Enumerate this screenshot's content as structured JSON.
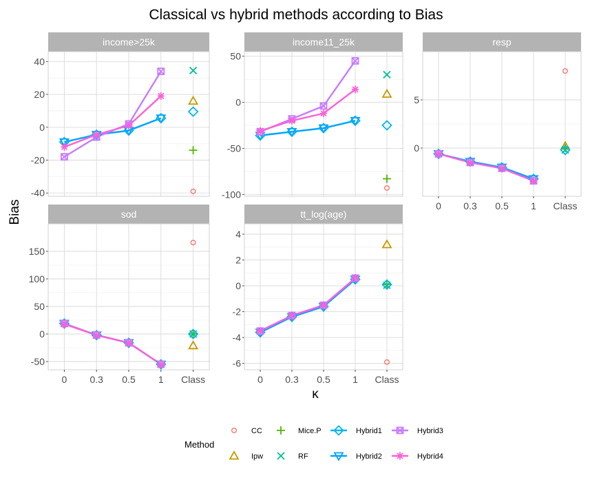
{
  "chart_data": {
    "type": "line",
    "title": "Classical vs hybrid methods according to Bias",
    "ylabel": "Bias",
    "xlabel": "κ",
    "categories": [
      "0",
      "0.3",
      "0.5",
      "1",
      "Class"
    ],
    "legend": {
      "title": "Method",
      "placement": "bottom",
      "entries": [
        "CC",
        "Ipw",
        "Mice.P",
        "RF",
        "Hybrid1",
        "Hybrid2",
        "Hybrid3",
        "Hybrid4"
      ]
    },
    "colors": {
      "CC": "#F8766D",
      "Ipw": "#C49A00",
      "Mice.P": "#53B400",
      "RF": "#00C094",
      "Hybrid1": "#00B6EB",
      "Hybrid2": "#06A4FF",
      "Hybrid3": "#C77CFF",
      "Hybrid4": "#FB61D7",
      "strip_background": "#B3B3B3",
      "strip_text": "#FFFFFF",
      "grid": "#D9D9D9"
    },
    "panels": [
      {
        "label": "income>25k",
        "ylim": [
          -42,
          46
        ],
        "yticks": [
          -40,
          -20,
          0,
          20,
          40
        ],
        "show_x_labels": false,
        "hybrids": {
          "Hybrid1": [
            -9,
            -4.5,
            -2,
            5.5
          ],
          "Hybrid2": [
            -9,
            -4.5,
            -2,
            5.5
          ],
          "Hybrid3": [
            -18,
            -6,
            2,
            34
          ],
          "Hybrid4": [
            -12,
            -4.5,
            1,
            19
          ]
        },
        "classical": {
          "CC": -39,
          "Ipw": 16,
          "Mice.P": -14,
          "RF": 34.5,
          "Hybrid1": 9.5
        }
      },
      {
        "label": "income11_25k",
        "ylim": [
          -102,
          55
        ],
        "yticks": [
          -100,
          -50,
          0,
          50
        ],
        "show_x_labels": false,
        "hybrids": {
          "Hybrid1": [
            -36,
            -32,
            -28,
            -20
          ],
          "Hybrid2": [
            -36,
            -32,
            -28,
            -20
          ],
          "Hybrid3": [
            -32,
            -18,
            -4,
            45
          ],
          "Hybrid4": [
            -31,
            -20,
            -12,
            14
          ]
        },
        "classical": {
          "CC": -93,
          "Ipw": 9,
          "Mice.P": -83,
          "RF": 30,
          "Hybrid1": -25
        }
      },
      {
        "label": "resp",
        "ylim": [
          -5,
          10
        ],
        "yticks": [
          0,
          5
        ],
        "show_x_labels": true,
        "hybrids": {
          "Hybrid1": [
            -0.6,
            -1.4,
            -2.0,
            -3.2
          ],
          "Hybrid2": [
            -0.6,
            -1.4,
            -2.0,
            -3.2
          ],
          "Hybrid3": [
            -0.6,
            -1.5,
            -2.1,
            -3.4
          ],
          "Hybrid4": [
            -0.6,
            -1.5,
            -2.1,
            -3.4
          ]
        },
        "classical": {
          "CC": 8,
          "Ipw": 0.2,
          "Mice.P": 0,
          "RF": -0.2,
          "Hybrid1": -0.2
        }
      },
      {
        "label": "sod",
        "ylim": [
          -65,
          200
        ],
        "yticks": [
          -50,
          0,
          50,
          100,
          150
        ],
        "show_x_labels": true,
        "hybrids": {
          "Hybrid1": [
            19,
            -2,
            -16,
            -55
          ],
          "Hybrid2": [
            19,
            -2,
            -16,
            -55
          ],
          "Hybrid3": [
            19,
            -2,
            -16,
            -55
          ],
          "Hybrid4": [
            18,
            -2,
            -16,
            -55
          ]
        },
        "classical": {
          "CC": 166,
          "Ipw": -21,
          "Mice.P": 0,
          "RF": 0,
          "Hybrid1": 0
        }
      },
      {
        "label": "tt_log(age)",
        "ylim": [
          -6.5,
          4.8
        ],
        "yticks": [
          -6,
          -4,
          -2,
          0,
          2,
          4
        ],
        "show_x_labels": true,
        "hybrids": {
          "Hybrid1": [
            -3.6,
            -2.4,
            -1.6,
            0.5
          ],
          "Hybrid2": [
            -3.6,
            -2.4,
            -1.6,
            0.5
          ],
          "Hybrid3": [
            -3.5,
            -2.3,
            -1.5,
            0.6
          ],
          "Hybrid4": [
            -3.5,
            -2.3,
            -1.5,
            0.6
          ]
        },
        "classical": {
          "CC": -5.9,
          "Ipw": 3.2,
          "Mice.P": 0.1,
          "RF": 0.05,
          "Hybrid1": 0.1
        }
      }
    ]
  }
}
